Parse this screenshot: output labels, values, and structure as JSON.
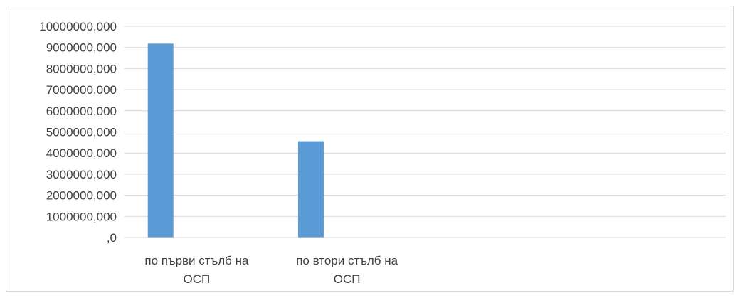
{
  "chart_data": {
    "type": "bar",
    "categories": [
      [
        "по първи стълб на",
        "ОСП"
      ],
      [
        "по втори стълб на",
        "ОСП"
      ],
      [
        "",
        ""
      ],
      [
        "",
        ""
      ]
    ],
    "values": [
      9180000,
      4560000,
      null,
      null
    ],
    "ylim": [
      0,
      10000000
    ],
    "yticks": [
      0,
      1000000,
      2000000,
      3000000,
      4000000,
      5000000,
      6000000,
      7000000,
      8000000,
      9000000,
      10000000
    ],
    "ytick_labels": [
      ",0",
      "1000000,000",
      "2000000,000",
      "3000000,000",
      "4000000,000",
      "5000000,000",
      "6000000,000",
      "7000000,000",
      "8000000,000",
      "9000000,000",
      "10000000,000"
    ],
    "grid": true,
    "legend": "none",
    "bar_color": "#5b9bd5",
    "grid_color": "#d9d9d9"
  }
}
